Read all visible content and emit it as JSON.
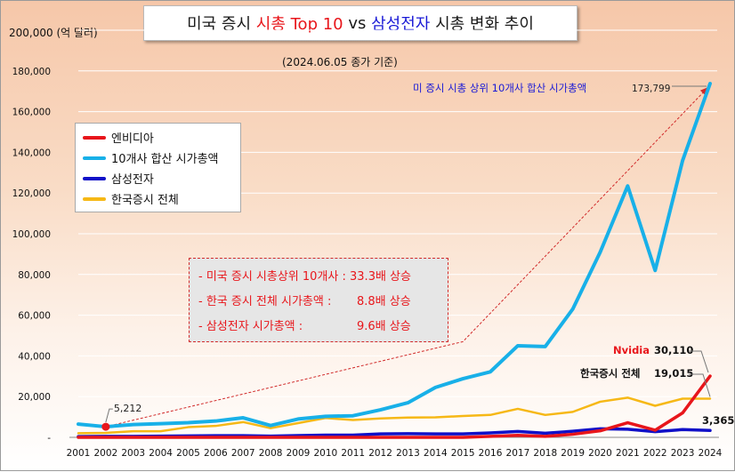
{
  "title": {
    "part1": "미국 증시 ",
    "part2": "시총 Top 10",
    "part3": " vs ",
    "part4": "삼성전자",
    "part5": " 시총 변화 추이"
  },
  "subtitle": "(2024.06.05 종가 기준)",
  "unit_label": "200,000 (억 달러)",
  "notes": [
    {
      "label": "- 미국 증시 시총상위 10개사 : ",
      "value": "33.3배 상승"
    },
    {
      "label": "- 한국 증시 전체 시가총액 :",
      "value": "8.8배 상승"
    },
    {
      "label": "- 삼성전자 시가총액 :",
      "value": "9.6배 상승"
    }
  ],
  "annotations": {
    "top10_label": "미 증시 시총 상위 10개사 합산 시가총액",
    "top10_end": "173,799",
    "start_2002": "5,212",
    "nvidia_name": "Nvidia",
    "nvidia_end": "30,110",
    "korea_name": "한국증시 전체",
    "korea_end": "19,015",
    "samsung_end": "3,365"
  },
  "colors": {
    "nvidia": "#e8161b",
    "top10": "#18b0e8",
    "samsung": "#1010c8",
    "korea": "#f6b816",
    "annotation_blue": "#1a1ad6",
    "arrow": "#d12a2a"
  },
  "chart_data": {
    "type": "line",
    "x": [
      "2001",
      "2002",
      "2003",
      "2004",
      "2005",
      "2006",
      "2007",
      "2008",
      "2009",
      "2010",
      "2011",
      "2012",
      "2013",
      "2014",
      "2015",
      "2016",
      "2017",
      "2018",
      "2019",
      "2020",
      "2021",
      "2022",
      "2023",
      "2024"
    ],
    "ylim": [
      0,
      200000
    ],
    "yticks": [
      0,
      20000,
      40000,
      60000,
      80000,
      100000,
      120000,
      140000,
      160000,
      180000,
      200000
    ],
    "ytick_labels": [
      "-",
      "20,000",
      "40,000",
      "60,000",
      "80,000",
      "100,000",
      "120,000",
      "140,000",
      "160,000",
      "180,000",
      "200,000"
    ],
    "grid": true,
    "legend_position": "upper-left",
    "series": [
      {
        "name": "엔비디아",
        "key": "nvidia",
        "values": [
          0,
          0,
          0,
          0,
          0,
          0,
          0,
          0,
          0,
          0,
          0,
          0,
          0,
          0,
          0,
          500,
          1000,
          500,
          1500,
          3200,
          7200,
          3500,
          12000,
          30110
        ]
      },
      {
        "name": "10개사 합산 시가총액",
        "key": "top10",
        "values": [
          6500,
          5212,
          6300,
          6700,
          7200,
          8000,
          9600,
          5800,
          9000,
          10300,
          10600,
          13500,
          17000,
          24500,
          28800,
          32200,
          45000,
          44600,
          63000,
          91000,
          123500,
          82000,
          136000,
          173799
        ]
      },
      {
        "name": "삼성전자",
        "key": "samsung",
        "values": [
          400,
          500,
          500,
          600,
          700,
          800,
          800,
          600,
          900,
          1100,
          1100,
          1700,
          1800,
          1700,
          1700,
          2200,
          2900,
          2000,
          3000,
          4200,
          4000,
          2800,
          3800,
          3365
        ]
      },
      {
        "name": "한국증시 전체",
        "key": "korea",
        "values": [
          2000,
          2200,
          3000,
          3000,
          5000,
          5600,
          7500,
          4500,
          7000,
          9500,
          8500,
          9300,
          9700,
          9800,
          10500,
          11000,
          14000,
          11000,
          12500,
          17500,
          19500,
          15500,
          19000,
          19015
        ]
      }
    ],
    "trend_arrow": {
      "from": {
        "x": "2002",
        "y": 5212
      },
      "via": {
        "x": "2015",
        "y": 47000
      },
      "to": {
        "x": "2024",
        "y": 173799
      }
    }
  }
}
